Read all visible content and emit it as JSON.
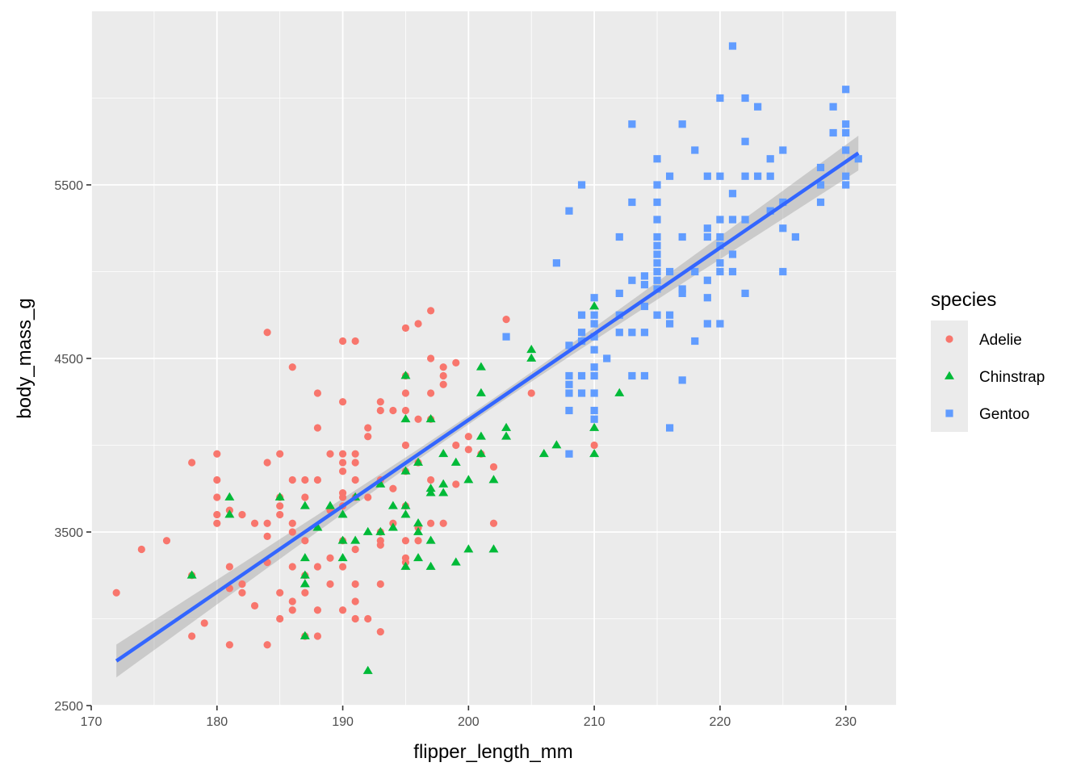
{
  "chart_data": {
    "type": "scatter",
    "title": "",
    "xlabel": "flipper_length_mm",
    "ylabel": "body_mass_g",
    "xlim": [
      170,
      234
    ],
    "ylim": [
      2500,
      6500
    ],
    "x_ticks": [
      170,
      180,
      190,
      200,
      210,
      220,
      230
    ],
    "x_tick_labels": [
      "170",
      "180",
      "190",
      "200",
      "210",
      "220",
      "230"
    ],
    "y_ticks": [
      2500,
      3500,
      4500,
      5500
    ],
    "y_tick_labels": [
      "2500",
      "3500",
      "4500",
      "5500"
    ],
    "grid": true,
    "legend": {
      "title": "species",
      "position": "right"
    },
    "series": [
      {
        "name": "Adelie",
        "color": "#F8766D",
        "shape": "circle",
        "points": [
          [
            172,
            3150
          ],
          [
            174,
            3400
          ],
          [
            176,
            3450
          ],
          [
            178,
            3900
          ],
          [
            178,
            3250
          ],
          [
            178,
            2900
          ],
          [
            179,
            2975
          ],
          [
            180,
            3950
          ],
          [
            180,
            3800
          ],
          [
            180,
            3700
          ],
          [
            180,
            3600
          ],
          [
            180,
            3550
          ],
          [
            181,
            3625
          ],
          [
            181,
            3300
          ],
          [
            181,
            3175
          ],
          [
            181,
            2850
          ],
          [
            182,
            3600
          ],
          [
            182,
            3200
          ],
          [
            182,
            3150
          ],
          [
            183,
            3550
          ],
          [
            183,
            3075
          ],
          [
            184,
            4650
          ],
          [
            184,
            3900
          ],
          [
            184,
            3550
          ],
          [
            184,
            3475
          ],
          [
            184,
            3325
          ],
          [
            184,
            2850
          ],
          [
            185,
            3950
          ],
          [
            185,
            3700
          ],
          [
            185,
            3650
          ],
          [
            185,
            3600
          ],
          [
            185,
            3150
          ],
          [
            185,
            3000
          ],
          [
            186,
            4450
          ],
          [
            186,
            3800
          ],
          [
            186,
            3550
          ],
          [
            186,
            3500
          ],
          [
            186,
            3300
          ],
          [
            186,
            3100
          ],
          [
            186,
            3050
          ],
          [
            187,
            3800
          ],
          [
            187,
            3700
          ],
          [
            187,
            3450
          ],
          [
            187,
            3250
          ],
          [
            187,
            3150
          ],
          [
            187,
            2900
          ],
          [
            188,
            4300
          ],
          [
            188,
            4100
          ],
          [
            188,
            3800
          ],
          [
            188,
            3300
          ],
          [
            188,
            3050
          ],
          [
            188,
            2900
          ],
          [
            189,
            3950
          ],
          [
            189,
            3625
          ],
          [
            189,
            3350
          ],
          [
            189,
            3200
          ],
          [
            190,
            4600
          ],
          [
            190,
            4250
          ],
          [
            190,
            3950
          ],
          [
            190,
            3900
          ],
          [
            190,
            3850
          ],
          [
            190,
            3725
          ],
          [
            190,
            3700
          ],
          [
            190,
            3650
          ],
          [
            190,
            3450
          ],
          [
            190,
            3300
          ],
          [
            190,
            3050
          ],
          [
            191,
            4600
          ],
          [
            191,
            3950
          ],
          [
            191,
            3900
          ],
          [
            191,
            3800
          ],
          [
            191,
            3700
          ],
          [
            191,
            3400
          ],
          [
            191,
            3200
          ],
          [
            191,
            3100
          ],
          [
            191,
            3000
          ],
          [
            192,
            4100
          ],
          [
            192,
            4050
          ],
          [
            192,
            3700
          ],
          [
            192,
            3000
          ],
          [
            193,
            4250
          ],
          [
            193,
            4200
          ],
          [
            193,
            3800
          ],
          [
            193,
            3500
          ],
          [
            193,
            3450
          ],
          [
            193,
            3425
          ],
          [
            193,
            3200
          ],
          [
            193,
            2925
          ],
          [
            194,
            4200
          ],
          [
            194,
            3750
          ],
          [
            194,
            3550
          ],
          [
            195,
            4675
          ],
          [
            195,
            4400
          ],
          [
            195,
            4300
          ],
          [
            195,
            4200
          ],
          [
            195,
            4000
          ],
          [
            195,
            3850
          ],
          [
            195,
            3650
          ],
          [
            195,
            3450
          ],
          [
            195,
            3350
          ],
          [
            195,
            3325
          ],
          [
            196,
            4700
          ],
          [
            196,
            4150
          ],
          [
            196,
            3900
          ],
          [
            196,
            3525
          ],
          [
            196,
            3450
          ],
          [
            197,
            4775
          ],
          [
            197,
            4500
          ],
          [
            197,
            4300
          ],
          [
            197,
            4150
          ],
          [
            197,
            3800
          ],
          [
            197,
            3550
          ],
          [
            198,
            4450
          ],
          [
            198,
            4400
          ],
          [
            198,
            4350
          ],
          [
            198,
            3550
          ],
          [
            199,
            4475
          ],
          [
            199,
            4000
          ],
          [
            199,
            3775
          ],
          [
            200,
            4050
          ],
          [
            200,
            3975
          ],
          [
            201,
            3950
          ],
          [
            202,
            3875
          ],
          [
            202,
            3550
          ],
          [
            203,
            4725
          ],
          [
            205,
            4300
          ],
          [
            210,
            4000
          ]
        ]
      },
      {
        "name": "Chinstrap",
        "color": "#00BA38",
        "shape": "triangle",
        "points": [
          [
            178,
            3250
          ],
          [
            181,
            3700
          ],
          [
            181,
            3600
          ],
          [
            185,
            3700
          ],
          [
            187,
            3650
          ],
          [
            187,
            3350
          ],
          [
            187,
            3250
          ],
          [
            187,
            3200
          ],
          [
            187,
            2900
          ],
          [
            188,
            3525
          ],
          [
            189,
            3650
          ],
          [
            190,
            3600
          ],
          [
            190,
            3450
          ],
          [
            190,
            3350
          ],
          [
            191,
            3700
          ],
          [
            191,
            3450
          ],
          [
            192,
            3500
          ],
          [
            192,
            2700
          ],
          [
            193,
            3775
          ],
          [
            193,
            3500
          ],
          [
            194,
            3650
          ],
          [
            194,
            3525
          ],
          [
            195,
            4400
          ],
          [
            195,
            4150
          ],
          [
            195,
            3850
          ],
          [
            195,
            3650
          ],
          [
            195,
            3600
          ],
          [
            195,
            3300
          ],
          [
            196,
            3900
          ],
          [
            196,
            3550
          ],
          [
            196,
            3500
          ],
          [
            196,
            3350
          ],
          [
            197,
            4150
          ],
          [
            197,
            3750
          ],
          [
            197,
            3725
          ],
          [
            197,
            3450
          ],
          [
            197,
            3300
          ],
          [
            198,
            3950
          ],
          [
            198,
            3775
          ],
          [
            198,
            3725
          ],
          [
            199,
            3900
          ],
          [
            199,
            3325
          ],
          [
            200,
            3800
          ],
          [
            200,
            3400
          ],
          [
            201,
            4450
          ],
          [
            201,
            4300
          ],
          [
            201,
            4050
          ],
          [
            201,
            3950
          ],
          [
            202,
            3800
          ],
          [
            202,
            3400
          ],
          [
            203,
            4100
          ],
          [
            203,
            4050
          ],
          [
            205,
            4550
          ],
          [
            205,
            4500
          ],
          [
            206,
            3950
          ],
          [
            207,
            4000
          ],
          [
            210,
            4800
          ],
          [
            210,
            4100
          ],
          [
            210,
            3950
          ],
          [
            212,
            4300
          ]
        ]
      },
      {
        "name": "Gentoo",
        "color": "#619CFF",
        "shape": "square",
        "points": [
          [
            203,
            4625
          ],
          [
            207,
            5050
          ],
          [
            208,
            5350
          ],
          [
            208,
            4575
          ],
          [
            208,
            4400
          ],
          [
            208,
            4350
          ],
          [
            208,
            4300
          ],
          [
            208,
            4200
          ],
          [
            208,
            3950
          ],
          [
            209,
            5500
          ],
          [
            209,
            4750
          ],
          [
            209,
            4650
          ],
          [
            209,
            4600
          ],
          [
            209,
            4400
          ],
          [
            209,
            4300
          ],
          [
            210,
            4850
          ],
          [
            210,
            4750
          ],
          [
            210,
            4700
          ],
          [
            210,
            4625
          ],
          [
            210,
            4550
          ],
          [
            210,
            4450
          ],
          [
            210,
            4400
          ],
          [
            210,
            4300
          ],
          [
            210,
            4200
          ],
          [
            210,
            4150
          ],
          [
            211,
            4500
          ],
          [
            212,
            4875
          ],
          [
            212,
            4650
          ],
          [
            212,
            4750
          ],
          [
            212,
            5200
          ],
          [
            213,
            5850
          ],
          [
            213,
            5400
          ],
          [
            213,
            4950
          ],
          [
            213,
            4650
          ],
          [
            213,
            4400
          ],
          [
            214,
            4925
          ],
          [
            214,
            4650
          ],
          [
            214,
            4400
          ],
          [
            214,
            4975
          ],
          [
            214,
            4800
          ],
          [
            215,
            5650
          ],
          [
            215,
            5500
          ],
          [
            215,
            5400
          ],
          [
            215,
            5300
          ],
          [
            215,
            5150
          ],
          [
            215,
            5100
          ],
          [
            215,
            5050
          ],
          [
            215,
            5000
          ],
          [
            215,
            4950
          ],
          [
            215,
            4900
          ],
          [
            215,
            4750
          ],
          [
            215,
            5200
          ],
          [
            216,
            5550
          ],
          [
            216,
            5000
          ],
          [
            216,
            4750
          ],
          [
            216,
            4700
          ],
          [
            216,
            4100
          ],
          [
            217,
            5850
          ],
          [
            217,
            5200
          ],
          [
            217,
            4900
          ],
          [
            217,
            4875
          ],
          [
            217,
            4375
          ],
          [
            218,
            5700
          ],
          [
            218,
            5000
          ],
          [
            218,
            4600
          ],
          [
            219,
            5550
          ],
          [
            219,
            5250
          ],
          [
            219,
            5200
          ],
          [
            219,
            4950
          ],
          [
            219,
            4850
          ],
          [
            219,
            4700
          ],
          [
            220,
            6000
          ],
          [
            220,
            5550
          ],
          [
            220,
            5300
          ],
          [
            220,
            5200
          ],
          [
            220,
            5150
          ],
          [
            220,
            5050
          ],
          [
            220,
            5000
          ],
          [
            220,
            4700
          ],
          [
            221,
            6300
          ],
          [
            221,
            5450
          ],
          [
            221,
            5300
          ],
          [
            221,
            5100
          ],
          [
            221,
            5000
          ],
          [
            222,
            6000
          ],
          [
            222,
            5750
          ],
          [
            222,
            5550
          ],
          [
            222,
            5300
          ],
          [
            222,
            4875
          ],
          [
            223,
            5950
          ],
          [
            223,
            5550
          ],
          [
            224,
            5650
          ],
          [
            224,
            5550
          ],
          [
            224,
            5350
          ],
          [
            225,
            5700
          ],
          [
            225,
            5400
          ],
          [
            225,
            5250
          ],
          [
            225,
            5000
          ],
          [
            226,
            5200
          ],
          [
            228,
            5600
          ],
          [
            228,
            5500
          ],
          [
            228,
            5400
          ],
          [
            229,
            5950
          ],
          [
            229,
            5800
          ],
          [
            230,
            6050
          ],
          [
            230,
            5850
          ],
          [
            230,
            5800
          ],
          [
            230,
            5700
          ],
          [
            230,
            5550
          ],
          [
            230,
            5500
          ],
          [
            231,
            5650
          ]
        ]
      }
    ],
    "regression": {
      "method": "lm",
      "color": "#3366FF",
      "band_color": "#999999",
      "x_range": [
        172,
        231
      ],
      "y_at_x_min": 2757,
      "y_at_x_max": 5683,
      "se_at_x_min": 95,
      "se_at_x_max": 100,
      "se_at_center": 25
    }
  }
}
